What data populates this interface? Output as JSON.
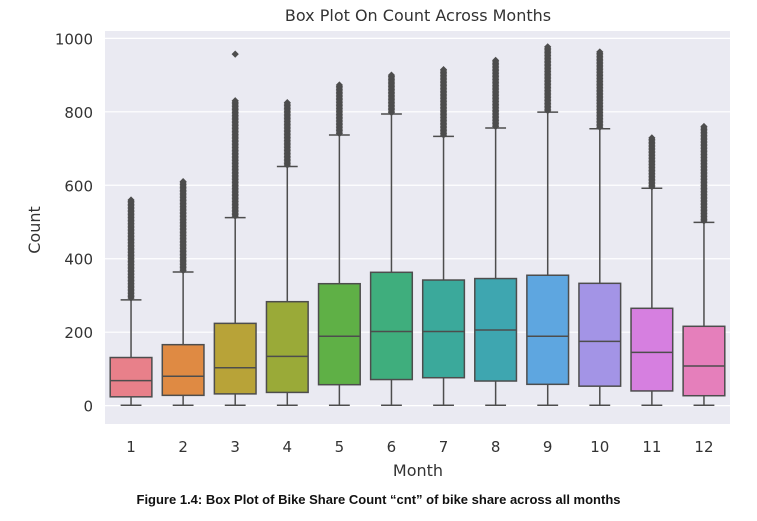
{
  "chart_data": {
    "type": "box",
    "title": "Box Plot On Count Across Months",
    "xlabel": "Month",
    "ylabel": "Count",
    "ylim": [
      -50,
      1020
    ],
    "yticks": [
      0,
      200,
      400,
      600,
      800,
      1000
    ],
    "grid": true,
    "categories": [
      "1",
      "2",
      "3",
      "4",
      "5",
      "6",
      "7",
      "8",
      "9",
      "10",
      "11",
      "12"
    ],
    "boxes": [
      {
        "month": "1",
        "min": 1,
        "q1": 24,
        "median": 68,
        "q3": 131,
        "whisker_high": 288,
        "outliers_low": 293,
        "outliers_high": 560,
        "color": "#e8808a"
      },
      {
        "month": "2",
        "min": 1,
        "q1": 28,
        "median": 80,
        "q3": 166,
        "whisker_high": 364,
        "outliers_low": 368,
        "outliers_high": 610,
        "color": "#df8a43"
      },
      {
        "month": "3",
        "min": 1,
        "q1": 32,
        "median": 103,
        "q3": 224,
        "whisker_high": 512,
        "outliers_low": 516,
        "outliers_high": 830,
        "extra_outliers": [
          957
        ],
        "color": "#b8a338"
      },
      {
        "month": "4",
        "min": 1,
        "q1": 36,
        "median": 134,
        "q3": 283,
        "whisker_high": 651,
        "outliers_low": 655,
        "outliers_high": 825,
        "color": "#9aaa38"
      },
      {
        "month": "5",
        "min": 1,
        "q1": 57,
        "median": 189,
        "q3": 332,
        "whisker_high": 737,
        "outliers_low": 741,
        "outliers_high": 873,
        "color": "#5fb046"
      },
      {
        "month": "6",
        "min": 1,
        "q1": 71,
        "median": 202,
        "q3": 363,
        "whisker_high": 794,
        "outliers_low": 798,
        "outliers_high": 900,
        "color": "#3fae7d"
      },
      {
        "month": "7",
        "min": 1,
        "q1": 76,
        "median": 202,
        "q3": 342,
        "whisker_high": 733,
        "outliers_low": 737,
        "outliers_high": 915,
        "color": "#3ba99b"
      },
      {
        "month": "8",
        "min": 1,
        "q1": 67,
        "median": 206,
        "q3": 346,
        "whisker_high": 756,
        "outliers_low": 760,
        "outliers_high": 940,
        "color": "#3ea6b0"
      },
      {
        "month": "9",
        "min": 1,
        "q1": 58,
        "median": 189,
        "q3": 355,
        "whisker_high": 799,
        "outliers_low": 803,
        "outliers_high": 977,
        "color": "#5ea6e0"
      },
      {
        "month": "10",
        "min": 1,
        "q1": 53,
        "median": 175,
        "q3": 333,
        "whisker_high": 754,
        "outliers_low": 758,
        "outliers_high": 963,
        "color": "#a394e6"
      },
      {
        "month": "11",
        "min": 1,
        "q1": 40,
        "median": 145,
        "q3": 265,
        "whisker_high": 592,
        "outliers_low": 596,
        "outliers_high": 729,
        "color": "#d67fe0"
      },
      {
        "month": "12",
        "min": 1,
        "q1": 27,
        "median": 108,
        "q3": 216,
        "whisker_high": 499,
        "outliers_low": 503,
        "outliers_high": 760,
        "color": "#e57fbb"
      }
    ]
  },
  "caption": "Figure 1.4: Box Plot of Bike Share Count “cnt” of bike share across all months",
  "colors": {
    "panel": "#eaeaf2",
    "grid": "#ffffff",
    "line": "#4d4d4d",
    "text": "#333333"
  }
}
